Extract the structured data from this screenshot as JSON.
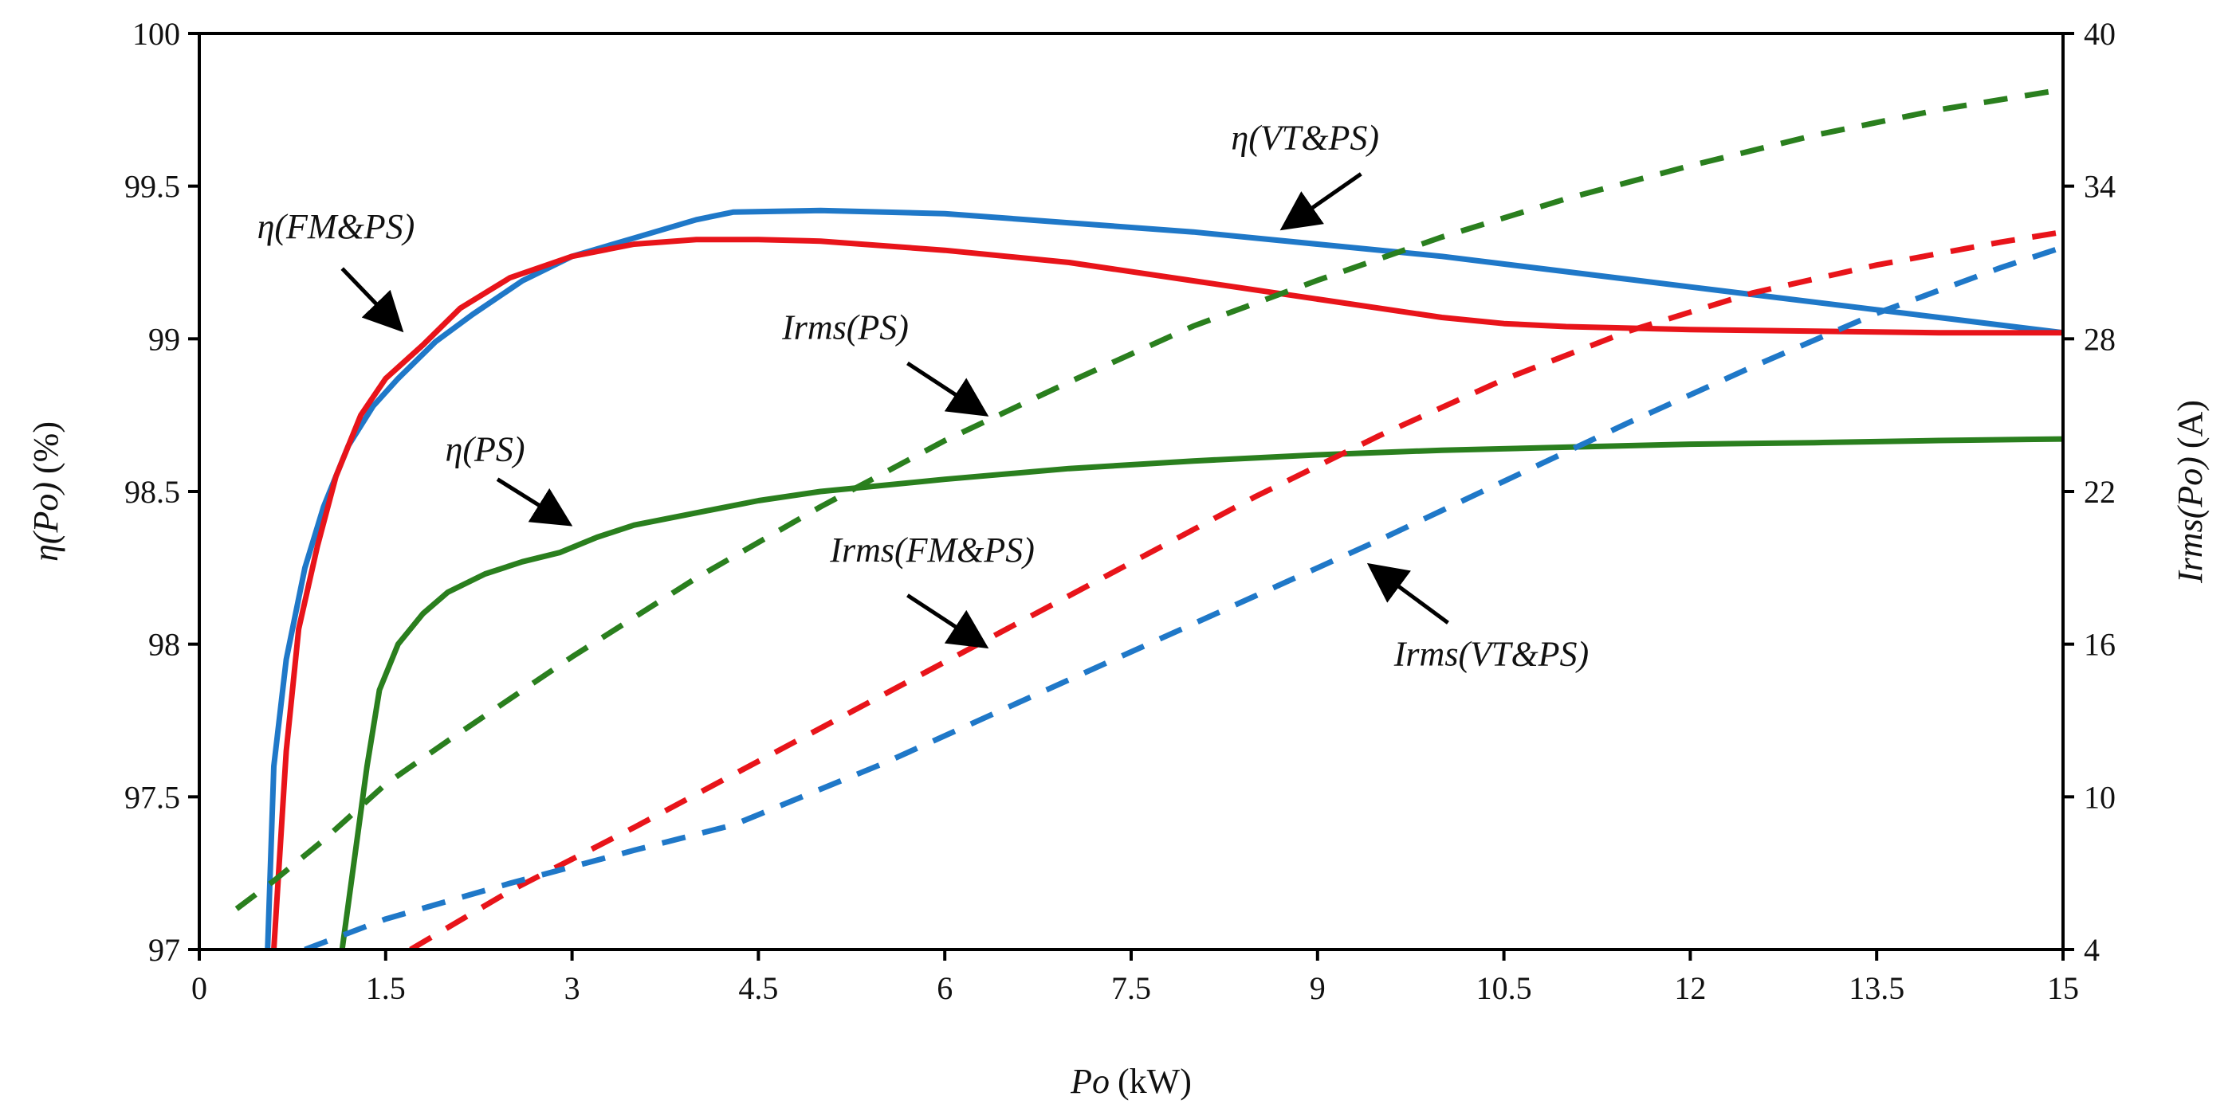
{
  "chart_data": {
    "type": "line",
    "x_axis": {
      "label_var": "Po",
      "label_unit": "(kW)",
      "range": [
        0,
        15
      ],
      "ticks": [
        "0",
        "1.5",
        "3",
        "4.5",
        "6",
        "7.5",
        "9",
        "10.5",
        "12",
        "13.5",
        "15"
      ]
    },
    "y_left": {
      "label_var": "η(Po)",
      "label_unit": "(%)",
      "range": [
        97,
        100
      ],
      "ticks": [
        "97",
        "97.5",
        "98",
        "98.5",
        "99",
        "99.5",
        "100"
      ]
    },
    "y_right": {
      "label_var": "Irms(Po)",
      "label_unit": "(A)",
      "range": [
        4,
        40
      ],
      "ticks": [
        "4",
        "10",
        "16",
        "22",
        "28",
        "34",
        "40"
      ]
    },
    "colors": {
      "vtps": "#1f78c8",
      "fmps": "#e8141a",
      "ps": "#2a7f1e",
      "arrow": "#000000"
    },
    "series": [
      {
        "name": "η(VT&PS)",
        "axis": "left",
        "style": "solid",
        "color": "vtps",
        "points": [
          [
            0.55,
            97.0
          ],
          [
            0.6,
            97.6
          ],
          [
            0.7,
            97.95
          ],
          [
            0.85,
            98.25
          ],
          [
            1.0,
            98.45
          ],
          [
            1.2,
            98.65
          ],
          [
            1.4,
            98.78
          ],
          [
            1.6,
            98.87
          ],
          [
            1.9,
            98.99
          ],
          [
            2.2,
            99.08
          ],
          [
            2.6,
            99.19
          ],
          [
            3.0,
            99.27
          ],
          [
            3.5,
            99.33
          ],
          [
            4.0,
            99.39
          ],
          [
            4.3,
            99.415
          ],
          [
            5.0,
            99.42
          ],
          [
            6.0,
            99.41
          ],
          [
            7.0,
            99.38
          ],
          [
            8.0,
            99.35
          ],
          [
            9.0,
            99.31
          ],
          [
            10.0,
            99.27
          ],
          [
            11.0,
            99.22
          ],
          [
            12.0,
            99.17
          ],
          [
            13.0,
            99.12
          ],
          [
            14.0,
            99.07
          ],
          [
            15.0,
            99.02
          ]
        ]
      },
      {
        "name": "η(FM&PS)",
        "axis": "left",
        "style": "solid",
        "color": "fmps",
        "points": [
          [
            0.6,
            97.0
          ],
          [
            0.7,
            97.65
          ],
          [
            0.8,
            98.05
          ],
          [
            0.95,
            98.32
          ],
          [
            1.1,
            98.55
          ],
          [
            1.3,
            98.75
          ],
          [
            1.5,
            98.87
          ],
          [
            1.8,
            98.98
          ],
          [
            2.1,
            99.1
          ],
          [
            2.5,
            99.2
          ],
          [
            3.0,
            99.27
          ],
          [
            3.5,
            99.31
          ],
          [
            4.0,
            99.325
          ],
          [
            4.5,
            99.325
          ],
          [
            5.0,
            99.32
          ],
          [
            6.0,
            99.29
          ],
          [
            7.0,
            99.25
          ],
          [
            8.0,
            99.19
          ],
          [
            9.0,
            99.13
          ],
          [
            10.0,
            99.07
          ],
          [
            10.5,
            99.05
          ],
          [
            11.0,
            99.04
          ],
          [
            12.0,
            99.03
          ],
          [
            13.0,
            99.025
          ],
          [
            14.0,
            99.02
          ],
          [
            15.0,
            99.02
          ]
        ]
      },
      {
        "name": "η(PS)",
        "axis": "left",
        "style": "solid",
        "color": "ps",
        "points": [
          [
            1.15,
            97.0
          ],
          [
            1.25,
            97.3
          ],
          [
            1.35,
            97.6
          ],
          [
            1.45,
            97.85
          ],
          [
            1.6,
            98.0
          ],
          [
            1.8,
            98.1
          ],
          [
            2.0,
            98.17
          ],
          [
            2.3,
            98.23
          ],
          [
            2.6,
            98.27
          ],
          [
            2.9,
            98.3
          ],
          [
            3.2,
            98.35
          ],
          [
            3.5,
            98.39
          ],
          [
            4.0,
            98.43
          ],
          [
            4.5,
            98.47
          ],
          [
            5.0,
            98.5
          ],
          [
            6.0,
            98.54
          ],
          [
            7.0,
            98.575
          ],
          [
            8.0,
            98.6
          ],
          [
            9.0,
            98.62
          ],
          [
            10.0,
            98.635
          ],
          [
            11.0,
            98.645
          ],
          [
            12.0,
            98.655
          ],
          [
            13.0,
            98.66
          ],
          [
            14.0,
            98.667
          ],
          [
            15.0,
            98.672
          ]
        ]
      },
      {
        "name": "Irms(PS)",
        "axis": "right",
        "style": "dashed",
        "color": "ps",
        "points": [
          [
            0.3,
            5.6
          ],
          [
            0.6,
            6.7
          ],
          [
            1.0,
            8.3
          ],
          [
            1.5,
            10.5
          ],
          [
            2.0,
            12.2
          ],
          [
            3.0,
            15.5
          ],
          [
            4.0,
            18.6
          ],
          [
            5.0,
            21.4
          ],
          [
            6.0,
            24.0
          ],
          [
            7.0,
            26.3
          ],
          [
            8.0,
            28.5
          ],
          [
            9.0,
            30.3
          ],
          [
            10.0,
            32.0
          ],
          [
            11.0,
            33.5
          ],
          [
            12.0,
            34.8
          ],
          [
            13.0,
            36.0
          ],
          [
            14.0,
            37.0
          ],
          [
            15.0,
            37.8
          ]
        ]
      },
      {
        "name": "Irms(FM&PS)",
        "axis": "right",
        "style": "dashed",
        "color": "fmps",
        "points": [
          [
            1.7,
            4.0
          ],
          [
            2.5,
            6.3
          ],
          [
            3.5,
            8.8
          ],
          [
            4.5,
            11.4
          ],
          [
            5.5,
            14.0
          ],
          [
            6.5,
            16.6
          ],
          [
            7.5,
            19.2
          ],
          [
            8.5,
            21.8
          ],
          [
            9.5,
            24.2
          ],
          [
            10.5,
            26.4
          ],
          [
            11.5,
            28.3
          ],
          [
            12.5,
            29.8
          ],
          [
            13.5,
            30.9
          ],
          [
            14.5,
            31.8
          ],
          [
            15.0,
            32.2
          ]
        ]
      },
      {
        "name": "Irms(VT&PS)",
        "axis": "right",
        "style": "dashed",
        "color": "vtps",
        "points": [
          [
            0.85,
            4.0
          ],
          [
            1.5,
            5.2
          ],
          [
            2.5,
            6.6
          ],
          [
            3.5,
            7.9
          ],
          [
            4.3,
            8.9
          ],
          [
            4.5,
            9.3
          ],
          [
            5.5,
            11.3
          ],
          [
            6.5,
            13.5
          ],
          [
            7.5,
            15.7
          ],
          [
            8.5,
            17.9
          ],
          [
            9.5,
            20.1
          ],
          [
            10.5,
            22.4
          ],
          [
            11.5,
            24.7
          ],
          [
            12.5,
            26.9
          ],
          [
            13.5,
            29.0
          ],
          [
            14.5,
            30.8
          ],
          [
            15.0,
            31.6
          ]
        ]
      }
    ],
    "annotations": [
      {
        "text": "η(VT&PS)",
        "text_at": [
          8.9,
          99.62
        ],
        "arrow_from": [
          9.35,
          99.54
        ],
        "arrow_to": [
          8.75,
          99.37
        ]
      },
      {
        "text": "η(FM&PS)",
        "text_at": [
          1.1,
          99.33
        ],
        "arrow_from": [
          1.15,
          99.23
        ],
        "arrow_to": [
          1.6,
          99.04
        ]
      },
      {
        "text": "Irms(PS)",
        "text_at": [
          5.2,
          99.0
        ],
        "arrow_from": [
          5.7,
          98.92
        ],
        "arrow_to": [
          6.3,
          98.76
        ]
      },
      {
        "text": "η(PS)",
        "text_at": [
          2.3,
          98.6
        ],
        "arrow_from": [
          2.4,
          98.54
        ],
        "arrow_to": [
          2.95,
          98.4
        ]
      },
      {
        "text": "Irms(FM&PS)",
        "text_at": [
          5.9,
          98.27
        ],
        "arrow_from": [
          5.7,
          98.16
        ],
        "arrow_to": [
          6.3,
          98.0
        ]
      },
      {
        "text": "Irms(VT&PS)",
        "text_at": [
          10.4,
          97.93
        ],
        "arrow_from": [
          10.05,
          98.07
        ],
        "arrow_to": [
          9.45,
          98.25
        ]
      }
    ]
  }
}
